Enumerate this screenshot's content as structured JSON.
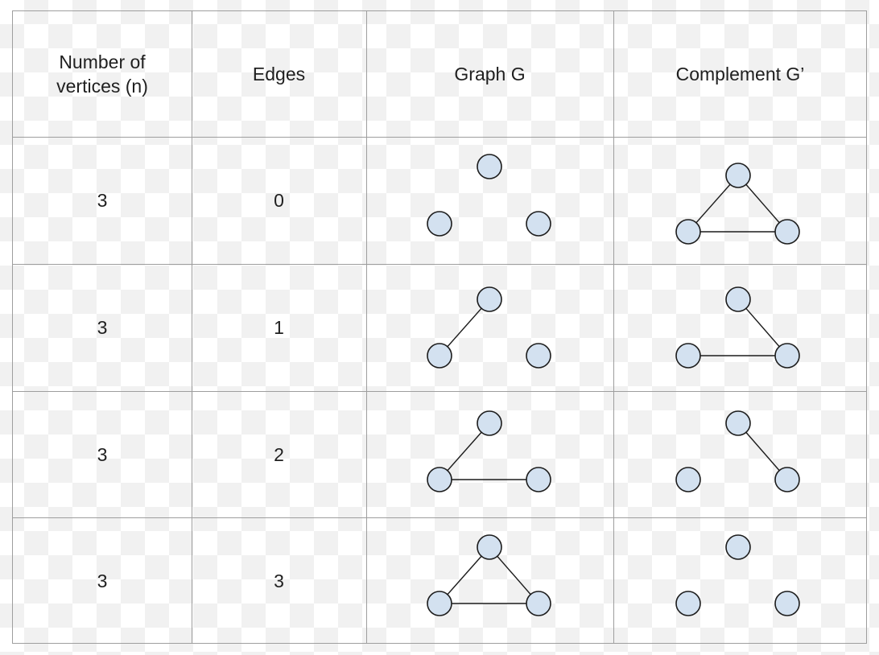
{
  "headers": {
    "vertices": "Number of\nvertices (n)",
    "edges": "Edges",
    "graph": "Graph G",
    "complement": "Complement G’"
  },
  "rows": [
    {
      "n": "3",
      "edges": "0",
      "graph_edges": [],
      "complement_edges": [
        [
          "top",
          "left"
        ],
        [
          "top",
          "right"
        ],
        [
          "left",
          "right"
        ]
      ]
    },
    {
      "n": "3",
      "edges": "1",
      "graph_edges": [
        [
          "top",
          "left"
        ]
      ],
      "complement_edges": [
        [
          "top",
          "right"
        ],
        [
          "left",
          "right"
        ]
      ]
    },
    {
      "n": "3",
      "edges": "2",
      "graph_edges": [
        [
          "top",
          "left"
        ],
        [
          "left",
          "right"
        ]
      ],
      "complement_edges": [
        [
          "top",
          "right"
        ]
      ]
    },
    {
      "n": "3",
      "edges": "3",
      "graph_edges": [
        [
          "top",
          "left"
        ],
        [
          "top",
          "right"
        ],
        [
          "left",
          "right"
        ]
      ],
      "complement_edges": []
    }
  ],
  "colors": {
    "node_fill": "#d3e1f0",
    "node_stroke": "#1c1c1c",
    "grid_line": "#9e9e9e"
  }
}
